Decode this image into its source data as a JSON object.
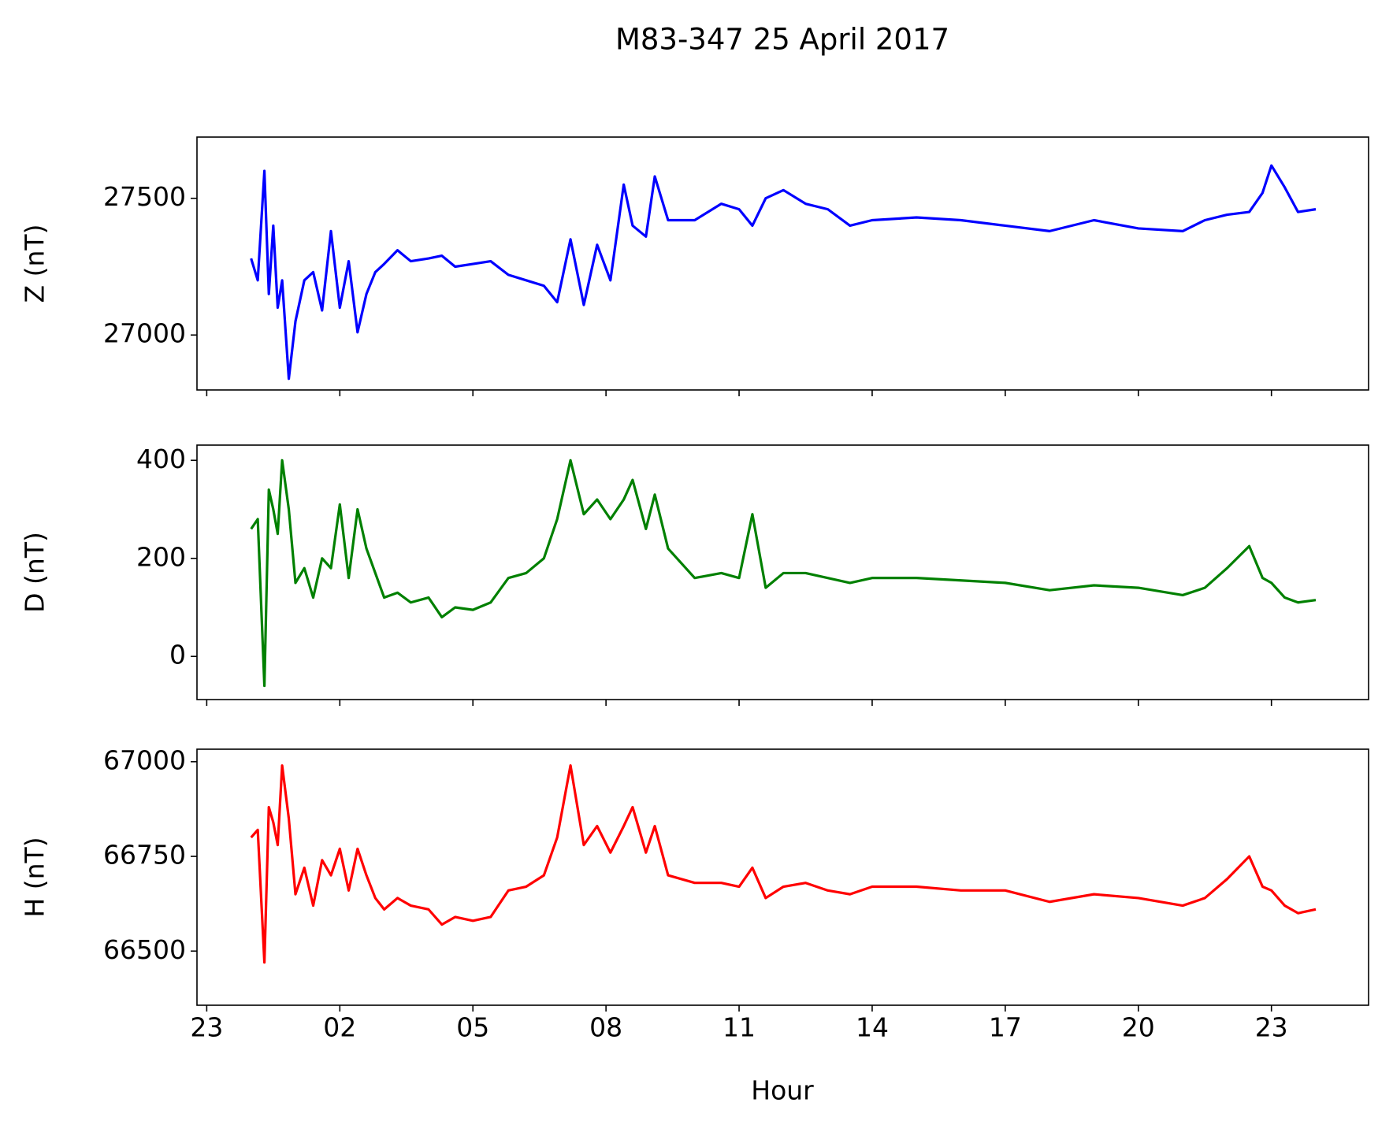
{
  "chart_data": [
    {
      "type": "line",
      "title": "M83-347 25 April 2017",
      "ylabel": "Z (nT)",
      "color": "#0000ff",
      "x": [
        0,
        0.15,
        0.3,
        0.4,
        0.5,
        0.6,
        0.7,
        0.85,
        1.0,
        1.2,
        1.4,
        1.6,
        1.8,
        2.0,
        2.2,
        2.4,
        2.6,
        2.8,
        3.0,
        3.3,
        3.6,
        4.0,
        4.3,
        4.6,
        5.0,
        5.4,
        5.8,
        6.2,
        6.6,
        6.9,
        7.2,
        7.5,
        7.8,
        8.1,
        8.4,
        8.6,
        8.9,
        9.1,
        9.4,
        10,
        10.6,
        11.0,
        11.3,
        11.6,
        12.0,
        12.5,
        13.0,
        13.5,
        14.0,
        15,
        16,
        17,
        18,
        19,
        20,
        21,
        21.5,
        22,
        22.5,
        22.8,
        23.0,
        23.3,
        23.6,
        24.0
      ],
      "values": [
        27280,
        27200,
        27600,
        27150,
        27400,
        27100,
        27200,
        26840,
        27050,
        27200,
        27230,
        27090,
        27380,
        27100,
        27270,
        27010,
        27150,
        27230,
        27260,
        27310,
        27270,
        27280,
        27290,
        27250,
        27260,
        27270,
        27220,
        27200,
        27180,
        27120,
        27350,
        27110,
        27330,
        27200,
        27550,
        27400,
        27360,
        27580,
        27420,
        27420,
        27480,
        27460,
        27400,
        27500,
        27530,
        27480,
        27460,
        27400,
        27420,
        27430,
        27420,
        27400,
        27380,
        27420,
        27390,
        27380,
        27420,
        27440,
        27450,
        27520,
        27620,
        27540,
        27450,
        27460
      ],
      "xlim": [
        -1.22,
        25.19
      ],
      "xticks": [
        {
          "value": -1,
          "label": "23"
        },
        {
          "value": 2,
          "label": "02"
        },
        {
          "value": 5,
          "label": "05"
        },
        {
          "value": 8,
          "label": "08"
        },
        11,
        14,
        17,
        20,
        23
      ],
      "ylim": [
        26799,
        27724
      ],
      "yticks": [
        27000,
        27500
      ]
    },
    {
      "type": "line",
      "ylabel": "D (nT)",
      "color": "#008000",
      "x": [
        0,
        0.15,
        0.3,
        0.4,
        0.5,
        0.6,
        0.7,
        0.85,
        1.0,
        1.2,
        1.4,
        1.6,
        1.8,
        2.0,
        2.2,
        2.4,
        2.6,
        2.8,
        3.0,
        3.3,
        3.6,
        4.0,
        4.3,
        4.6,
        5.0,
        5.4,
        5.8,
        6.2,
        6.6,
        6.9,
        7.2,
        7.5,
        7.8,
        8.1,
        8.4,
        8.6,
        8.9,
        9.1,
        9.4,
        10,
        10.6,
        11.0,
        11.3,
        11.6,
        12.0,
        12.5,
        13.0,
        13.5,
        14.0,
        15,
        16,
        17,
        18,
        19,
        20,
        21,
        21.5,
        22,
        22.5,
        22.8,
        23.0,
        23.3,
        23.6,
        24.0
      ],
      "values": [
        260,
        280,
        -60,
        340,
        300,
        250,
        400,
        300,
        150,
        180,
        120,
        200,
        180,
        310,
        160,
        300,
        220,
        170,
        120,
        130,
        110,
        120,
        80,
        100,
        95,
        110,
        160,
        170,
        200,
        280,
        400,
        290,
        320,
        280,
        320,
        360,
        260,
        330,
        220,
        160,
        170,
        160,
        290,
        140,
        170,
        170,
        160,
        150,
        160,
        160,
        155,
        150,
        135,
        145,
        140,
        125,
        140,
        180,
        225,
        160,
        150,
        120,
        110,
        115
      ],
      "xlim": [
        -1.22,
        25.19
      ],
      "xticks": [
        {
          "value": -1,
          "label": "23"
        },
        {
          "value": 2,
          "label": "02"
        },
        {
          "value": 5,
          "label": "05"
        },
        {
          "value": 8,
          "label": "08"
        },
        11,
        14,
        17,
        20,
        23
      ],
      "ylim": [
        -88,
        431
      ],
      "yticks": [
        0,
        200,
        400
      ]
    },
    {
      "type": "line",
      "ylabel": "H (nT)",
      "xlabel": "Hour",
      "color": "#ff0000",
      "x": [
        0,
        0.15,
        0.3,
        0.4,
        0.5,
        0.6,
        0.7,
        0.85,
        1.0,
        1.2,
        1.4,
        1.6,
        1.8,
        2.0,
        2.2,
        2.4,
        2.6,
        2.8,
        3.0,
        3.3,
        3.6,
        4.0,
        4.3,
        4.6,
        5.0,
        5.4,
        5.8,
        6.2,
        6.6,
        6.9,
        7.2,
        7.5,
        7.8,
        8.1,
        8.4,
        8.6,
        8.9,
        9.1,
        9.4,
        10,
        10.6,
        11.0,
        11.3,
        11.6,
        12.0,
        12.5,
        13.0,
        13.5,
        14.0,
        15,
        16,
        17,
        18,
        19,
        20,
        21,
        21.5,
        22,
        22.5,
        22.8,
        23.0,
        23.3,
        23.6,
        24.0
      ],
      "values": [
        66800,
        66820,
        66470,
        66880,
        66840,
        66780,
        66990,
        66850,
        66650,
        66720,
        66620,
        66740,
        66700,
        66770,
        66660,
        66770,
        66700,
        66640,
        66610,
        66640,
        66620,
        66610,
        66570,
        66590,
        66580,
        66590,
        66660,
        66670,
        66700,
        66800,
        66990,
        66780,
        66830,
        66760,
        66830,
        66880,
        66760,
        66830,
        66700,
        66680,
        66680,
        66670,
        66720,
        66640,
        66670,
        66680,
        66660,
        66650,
        66670,
        66670,
        66660,
        66660,
        66630,
        66650,
        66640,
        66620,
        66640,
        66690,
        66750,
        66670,
        66660,
        66620,
        66600,
        66610
      ],
      "xlim": [
        -1.22,
        25.19
      ],
      "xticks": [
        {
          "value": -1,
          "label": "23"
        },
        {
          "value": 2,
          "label": "02"
        },
        {
          "value": 5,
          "label": "05"
        },
        {
          "value": 8,
          "label": "08"
        },
        11,
        14,
        17,
        20,
        23
      ],
      "ylim": [
        66357,
        67033
      ],
      "yticks": [
        66500,
        66750,
        67000
      ]
    }
  ]
}
